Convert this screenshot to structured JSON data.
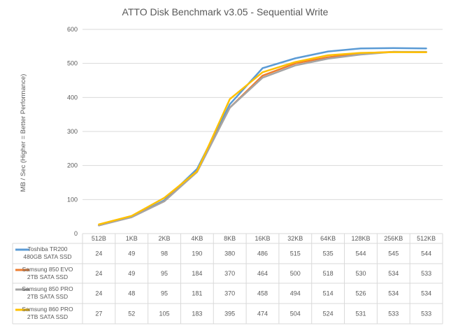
{
  "chart_data": {
    "type": "line",
    "title": "ATTO Disk Benchmark v3.05 - Sequential Write",
    "xlabel": "",
    "ylabel": "MB / Sec (Higher = Better Performance)",
    "ylim": [
      0,
      600
    ],
    "yticks": [
      0,
      100,
      200,
      300,
      400,
      500,
      600
    ],
    "grid": true,
    "legend": "data-table",
    "categories": [
      "512B",
      "1KB",
      "2KB",
      "4KB",
      "8KB",
      "16KB",
      "32KB",
      "64KB",
      "128KB",
      "256KB",
      "512KB"
    ],
    "series": [
      {
        "name": "Toshiba TR200 480GB SATA SSD",
        "name_lines": [
          "Toshiba TR200",
          "480GB SATA SSD"
        ],
        "color": "#5B9BD5",
        "values": [
          24,
          49,
          98,
          190,
          380,
          486,
          515,
          535,
          544,
          545,
          544
        ]
      },
      {
        "name": "Samsung 850 EVO 2TB SATA SSD",
        "name_lines": [
          "Samsung 850 EVO",
          "2TB SATA SSD"
        ],
        "color": "#ED7D31",
        "values": [
          24,
          49,
          95,
          184,
          370,
          464,
          500,
          518,
          530,
          534,
          533
        ]
      },
      {
        "name": "Samsung 850 PRO 2TB SATA SSD",
        "name_lines": [
          "Samsung 850 PRO",
          "2TB SATA SSD"
        ],
        "color": "#A5A5A5",
        "values": [
          24,
          48,
          95,
          181,
          370,
          458,
          494,
          514,
          526,
          534,
          534
        ]
      },
      {
        "name": "Samsung 860 PRO 2TB SATA SSD",
        "name_lines": [
          "Samsung 860 PRO",
          "2TB SATA SSD"
        ],
        "color": "#FFC000",
        "values": [
          27,
          52,
          105,
          183,
          395,
          474,
          504,
          524,
          531,
          533,
          533
        ]
      }
    ]
  }
}
